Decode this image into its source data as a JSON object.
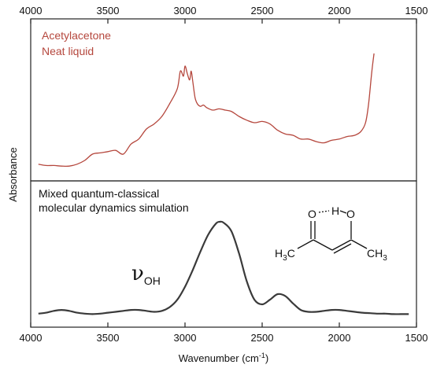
{
  "chart_data": [
    {
      "type": "line",
      "panel": "top",
      "xlabel": "Wavenumber (cm-1)",
      "xlim": [
        4000,
        1500
      ],
      "x_reversed": true,
      "xticks": [
        4000,
        3500,
        3000,
        2500,
        2000,
        1500
      ],
      "ylabel": "Absorbance",
      "annotations": [
        "Acetylacetone",
        "Neat liquid"
      ],
      "series": [
        {
          "name": "",
          "color": "#b5473d",
          "x": [
            3950,
            3900,
            3850,
            3800,
            3750,
            3700,
            3650,
            3600,
            3550,
            3500,
            3450,
            3400,
            3350,
            3300,
            3250,
            3200,
            3150,
            3100,
            3050,
            3030,
            3010,
            3000,
            2985,
            2970,
            2960,
            2950,
            2935,
            2920,
            2900,
            2880,
            2860,
            2820,
            2780,
            2740,
            2700,
            2650,
            2600,
            2550,
            2500,
            2450,
            2400,
            2350,
            2300,
            2250,
            2200,
            2150,
            2100,
            2050,
            2000,
            1950,
            1900,
            1860,
            1830,
            1810,
            1790,
            1775
          ],
          "values": [
            0.02,
            0.01,
            0.01,
            0.005,
            0.005,
            0.02,
            0.05,
            0.1,
            0.11,
            0.12,
            0.13,
            0.1,
            0.18,
            0.22,
            0.3,
            0.34,
            0.4,
            0.5,
            0.62,
            0.76,
            0.72,
            0.8,
            0.74,
            0.69,
            0.76,
            0.68,
            0.55,
            0.5,
            0.48,
            0.49,
            0.47,
            0.45,
            0.46,
            0.45,
            0.44,
            0.4,
            0.37,
            0.35,
            0.36,
            0.34,
            0.29,
            0.26,
            0.25,
            0.22,
            0.22,
            0.2,
            0.19,
            0.21,
            0.22,
            0.24,
            0.25,
            0.28,
            0.35,
            0.5,
            0.75,
            0.9
          ]
        }
      ]
    },
    {
      "type": "line",
      "panel": "bottom",
      "xlabel": "Wavenumber (cm-1)",
      "xlim": [
        4000,
        1500
      ],
      "x_reversed": true,
      "xticks": [
        4000,
        3500,
        3000,
        2500,
        2000,
        1500
      ],
      "annotations": [
        "Mixed quantum-classical",
        "molecular dynamics simulation"
      ],
      "series": [
        {
          "name": "",
          "color": "#3a3a3a",
          "x": [
            3950,
            3900,
            3850,
            3800,
            3750,
            3700,
            3650,
            3600,
            3550,
            3500,
            3450,
            3400,
            3350,
            3300,
            3250,
            3200,
            3150,
            3100,
            3050,
            3000,
            2950,
            2900,
            2850,
            2800,
            2775,
            2750,
            2700,
            2650,
            2600,
            2550,
            2500,
            2450,
            2400,
            2350,
            2300,
            2250,
            2200,
            2150,
            2100,
            2050,
            2000,
            1950,
            1900,
            1850,
            1800,
            1750,
            1700,
            1650,
            1600,
            1550
          ],
          "values": [
            0.01,
            0.02,
            0.04,
            0.05,
            0.04,
            0.02,
            0.01,
            0.005,
            0.01,
            0.02,
            0.03,
            0.04,
            0.05,
            0.05,
            0.04,
            0.03,
            0.04,
            0.08,
            0.16,
            0.3,
            0.48,
            0.68,
            0.86,
            0.98,
            1.0,
            0.99,
            0.9,
            0.66,
            0.36,
            0.16,
            0.11,
            0.16,
            0.22,
            0.2,
            0.12,
            0.05,
            0.03,
            0.03,
            0.04,
            0.05,
            0.05,
            0.04,
            0.03,
            0.02,
            0.015,
            0.01,
            0.01,
            0.005,
            0.005,
            0.005
          ]
        }
      ]
    }
  ],
  "labels": {
    "top_line1": "Acetylacetone",
    "top_line2": "Neat liquid",
    "bottom_line1": "Mixed quantum-classical",
    "bottom_line2": "molecular dynamics simulation",
    "y_title": "Absorbance",
    "x_title_main": "Wavenumber (cm",
    "x_title_sup": "-1",
    "x_title_end": ")",
    "nu_symbol": "ν",
    "nu_sub": "OH",
    "mol_O_left": "O",
    "mol_H": "H",
    "mol_O_right": "O",
    "mol_left_group": "H",
    "mol_left_sub": "3",
    "mol_left_C": "C",
    "mol_right_C": "CH",
    "mol_right_sub": "3"
  },
  "colors": {
    "experiment": "#b5473d",
    "simulation": "#3a3a3a",
    "axes": "#222222"
  }
}
